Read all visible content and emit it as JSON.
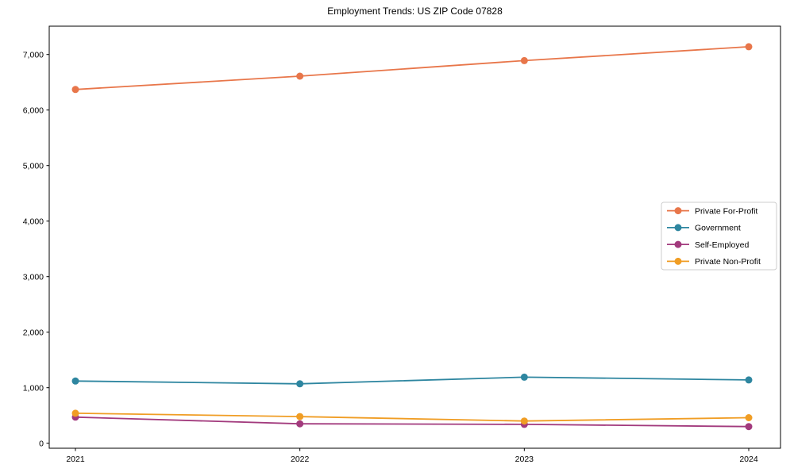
{
  "page": {
    "background": "#ffffff"
  },
  "chart_data": {
    "type": "line",
    "title": "Employment Trends: US ZIP Code 07828",
    "categories": [
      "2021",
      "2022",
      "2023",
      "2024"
    ],
    "series": [
      {
        "name": "Private For-Profit",
        "color": "#e8764a",
        "values": [
          6370,
          6610,
          6890,
          7140
        ]
      },
      {
        "name": "Government",
        "color": "#2e86a0",
        "values": [
          1120,
          1070,
          1190,
          1140
        ]
      },
      {
        "name": "Self-Employed",
        "color": "#a23a7d",
        "values": [
          470,
          350,
          340,
          300
        ]
      },
      {
        "name": "Private Non-Profit",
        "color": "#f09d24",
        "values": [
          540,
          480,
          400,
          460
        ]
      }
    ],
    "xlabel": "",
    "ylabel": "",
    "yticks": [
      0,
      1000,
      2000,
      3000,
      4000,
      5000,
      6000,
      7000
    ],
    "ylim": [
      -90,
      7510
    ],
    "grid": false,
    "legend_position": "center right",
    "axis_color": "#000000",
    "legend_border_color": "#cccccc"
  }
}
